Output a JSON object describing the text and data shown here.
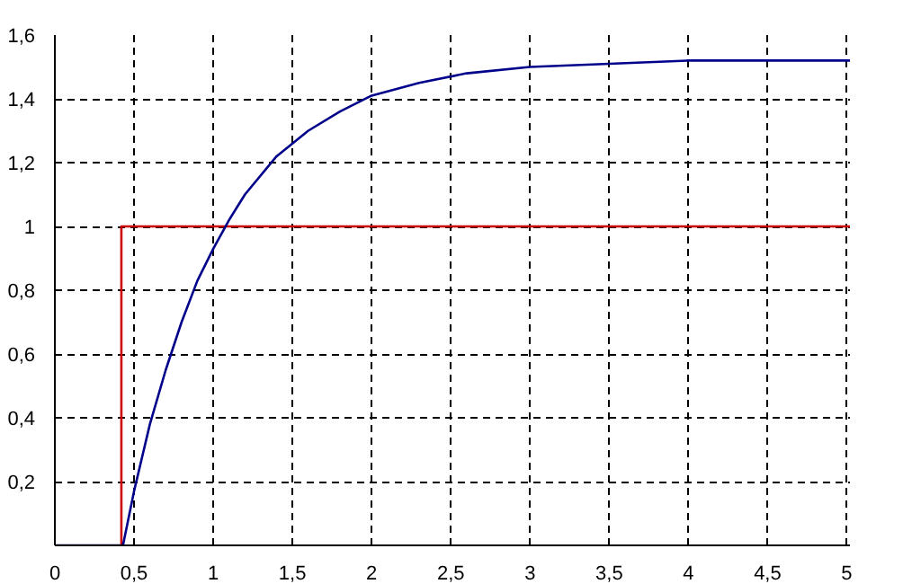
{
  "chart_data": {
    "type": "line",
    "xlim": [
      0,
      5.02
    ],
    "ylim": [
      0,
      1.6
    ],
    "xticks": [
      0,
      {
        "value": 0.5,
        "label": "0,5"
      },
      1,
      {
        "value": 1.5,
        "label": "1,5"
      },
      2,
      {
        "value": 2.5,
        "label": "2,5"
      },
      3,
      {
        "value": 3.5,
        "label": "3,5"
      },
      4,
      {
        "value": 4.5,
        "label": "4,5"
      },
      5
    ],
    "yticks": [
      {
        "value": 0.2,
        "label": "0,2"
      },
      {
        "value": 0.4,
        "label": "0,4"
      },
      {
        "value": 0.6,
        "label": "0,6"
      },
      {
        "value": 0.8,
        "label": "0,8"
      },
      1,
      {
        "value": 1.2,
        "label": "1,2"
      },
      {
        "value": 1.4,
        "label": "1,4"
      },
      {
        "value": 1.6,
        "label": "1,6"
      }
    ],
    "grid": true,
    "line_style": "solid",
    "series": [
      {
        "color": "#cc0000",
        "x": [
          0.42,
          0.42,
          5.02
        ],
        "values": [
          0,
          1,
          1
        ]
      },
      {
        "color": "#00008b",
        "x": [
          0,
          0.43,
          0.5,
          0.6,
          0.7,
          0.8,
          0.9,
          1.0,
          1.1,
          1.2,
          1.4,
          1.6,
          1.8,
          2.0,
          2.3,
          2.6,
          3.0,
          3.5,
          4.0,
          5.0,
          5.02
        ],
        "values": [
          0,
          0,
          0.17,
          0.38,
          0.55,
          0.7,
          0.83,
          0.93,
          1.02,
          1.1,
          1.22,
          1.3,
          1.36,
          1.41,
          1.45,
          1.48,
          1.5,
          1.51,
          1.52,
          1.52,
          1.52
        ]
      }
    ]
  }
}
